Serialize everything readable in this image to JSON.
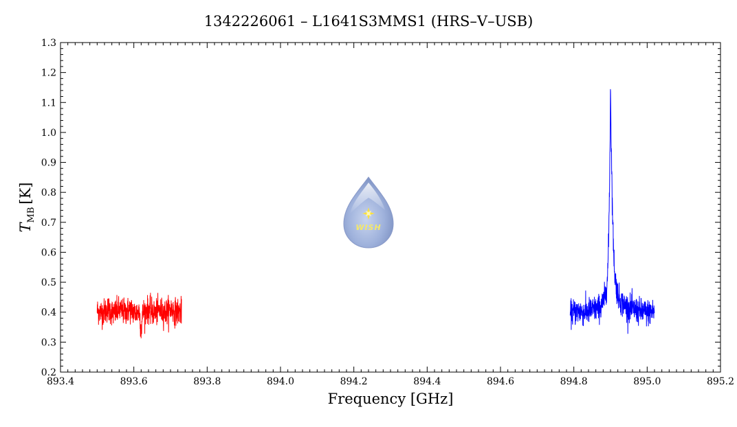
{
  "chart_data": {
    "type": "line",
    "title": "1342226061 – L1641S3MMS1 (HRS–V–USB)",
    "xlabel": "Frequency [GHz]",
    "ylabel_main": "T",
    "ylabel_sub": "MB",
    "ylabel_unit": "[K]",
    "xlim": [
      893.4,
      895.2
    ],
    "ylim": [
      0.2,
      1.3
    ],
    "xticks": [
      893.4,
      893.6,
      893.8,
      894.0,
      894.2,
      894.4,
      894.6,
      894.8,
      895.0,
      895.2
    ],
    "xtick_labels": [
      "893.4",
      "893.6",
      "893.8",
      "894.0",
      "894.2",
      "894.4",
      "894.6",
      "894.8",
      "895.0",
      "895.2"
    ],
    "yticks": [
      0.2,
      0.3,
      0.4,
      0.5,
      0.6,
      0.7,
      0.8,
      0.9,
      1.0,
      1.1,
      1.2,
      1.3
    ],
    "ytick_labels": [
      "0.2",
      "0.3",
      "0.4",
      "0.5",
      "0.6",
      "0.7",
      "0.8",
      "0.9",
      "1.0",
      "1.1",
      "1.2",
      "1.3"
    ],
    "grid": false,
    "logo_text": "WISH",
    "series": [
      {
        "color": "#ff0000",
        "x": [
          893.5,
          893.515,
          893.53,
          893.545,
          893.56,
          893.575,
          893.59,
          893.605,
          893.615,
          893.62,
          893.625,
          893.64,
          893.655,
          893.67,
          893.685,
          893.7,
          893.715,
          893.73
        ],
        "y": [
          0.405,
          0.398,
          0.412,
          0.395,
          0.408,
          0.4,
          0.41,
          0.396,
          0.404,
          0.34,
          0.402,
          0.409,
          0.397,
          0.406,
          0.399,
          0.411,
          0.401,
          0.403
        ]
      },
      {
        "color": "#0000ff",
        "x": [
          894.79,
          894.81,
          894.83,
          894.85,
          894.865,
          894.875,
          894.882,
          894.888,
          894.892,
          894.895,
          894.897,
          894.899,
          894.9,
          894.901,
          894.903,
          894.905,
          894.908,
          894.912,
          894.918,
          894.925,
          894.94,
          894.96,
          894.98,
          895.0,
          895.02
        ],
        "y": [
          0.396,
          0.404,
          0.399,
          0.408,
          0.412,
          0.42,
          0.44,
          0.47,
          0.52,
          0.64,
          0.8,
          0.98,
          1.18,
          1.05,
          0.9,
          0.76,
          0.62,
          0.52,
          0.47,
          0.44,
          0.42,
          0.41,
          0.402,
          0.398,
          0.404
        ]
      }
    ]
  }
}
